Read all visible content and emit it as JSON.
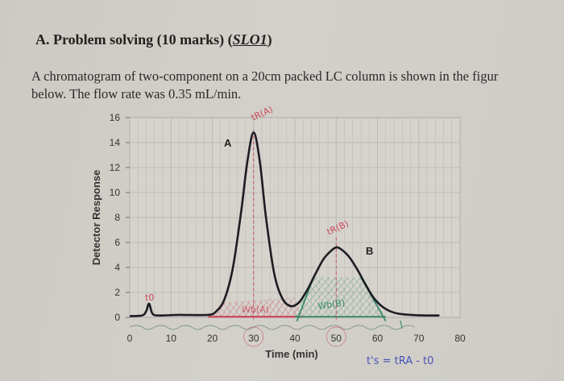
{
  "heading": {
    "prefix": "A. Problem solving (10 marks) (",
    "slo": "SLO1",
    "suffix": ")"
  },
  "paragraph": {
    "line1": "A chromatogram of two-component on a 20cm packed LC column is shown in the figur",
    "line2": "below. The flow rate was 0.35 mL/min."
  },
  "chart_data": {
    "type": "line",
    "title": "",
    "xlabel": "Time (min)",
    "ylabel": "Detector Response",
    "xlim": [
      0,
      80
    ],
    "ylim": [
      0,
      16
    ],
    "x_ticks": [
      0,
      10,
      20,
      30,
      40,
      50,
      60,
      70,
      80
    ],
    "y_ticks": [
      0,
      2,
      4,
      6,
      8,
      10,
      12,
      14,
      16
    ],
    "grid": true,
    "series": [
      {
        "name": "chromatogram",
        "color": "#1c1c22",
        "x": [
          0,
          3,
          4,
          4.7,
          5.5,
          7,
          12,
          19,
          21,
          23,
          25,
          27,
          28.5,
          30,
          31.5,
          33,
          35,
          37,
          39,
          41,
          43,
          45,
          47,
          49,
          50,
          51,
          53,
          55,
          57,
          59,
          61,
          63,
          65,
          68,
          72,
          75
        ],
        "y": [
          0.1,
          0.15,
          0.5,
          1.1,
          0.3,
          0.15,
          0.2,
          0.2,
          0.5,
          1.5,
          4.0,
          8.5,
          12.5,
          14.8,
          12.5,
          8.0,
          3.5,
          1.5,
          0.9,
          1.2,
          2.2,
          3.5,
          4.7,
          5.4,
          5.6,
          5.5,
          4.9,
          3.9,
          2.7,
          1.6,
          0.9,
          0.5,
          0.3,
          0.2,
          0.15,
          0.15
        ]
      }
    ],
    "peak_labels": [
      {
        "text": "A",
        "x": 22,
        "y": 14
      },
      {
        "text": "B",
        "x": 59,
        "y": 5.4
      }
    ],
    "annotations": [
      {
        "text": "t0",
        "x": 4.5,
        "y": 1.8,
        "color": "#c8475a"
      },
      {
        "text": "tR(A)",
        "x": 30,
        "y": 16.4,
        "color": "#c8475a"
      },
      {
        "text": "tR(B)",
        "x": 51,
        "y": 6.8,
        "color": "#c8475a"
      },
      {
        "text": "Wb(A)",
        "x": 32,
        "y": 0.5,
        "color": "#c8475a"
      },
      {
        "text": "Wb(B)",
        "x": 51,
        "y": 1.0,
        "color": "#3a8a6a"
      },
      {
        "text": "t's = tRA - t0",
        "x": 60,
        "y": -2.5,
        "color": "#4a52b8"
      }
    ]
  },
  "axes": {
    "y_ticks": [
      "0",
      "2",
      "4",
      "6",
      "8",
      "10",
      "12",
      "14",
      "16"
    ],
    "x_ticks": [
      "0",
      "10",
      "20",
      "30",
      "40",
      "50",
      "60",
      "70",
      "80"
    ],
    "xlabel": "Time (min)",
    "ylabel": "Detector Response",
    "peak_a": "A",
    "peak_b": "B"
  },
  "handwriting": {
    "t0": "t0",
    "tra": "tR(A)",
    "trb": "tR(B)",
    "wba": "Wb(A)",
    "wbb": "Wb(B)",
    "formula": "t's = tRA - t0"
  },
  "colors": {
    "paper": "#d0cdc7",
    "grid": "#b9b6b1",
    "trace": "#1c1c22",
    "red_ink": "#c8475a",
    "green_ink": "#3a8a6a",
    "blue_ink": "#4a52b8"
  }
}
